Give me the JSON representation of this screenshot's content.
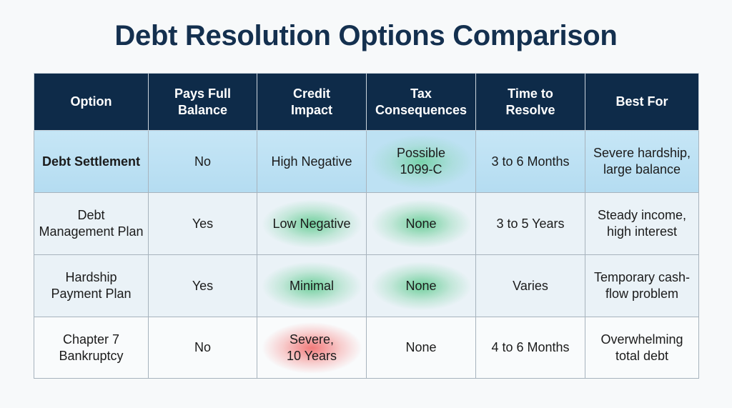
{
  "header": {
    "title": "Debt Resolution Options Comparison"
  },
  "table": {
    "columns": [
      "Option",
      "Pays Full\nBalance",
      "Credit\nImpact",
      "Tax\nConsequences",
      "Time to\nResolve",
      "Best For"
    ],
    "rows": [
      [
        "Debt Settlement",
        "No",
        "High Negative",
        "Possible\n1099-C",
        "3 to 6 Months",
        "Severe hardship,\nlarge balance"
      ],
      [
        "Debt\nManagement Plan",
        "Yes",
        "Low Negative",
        "None",
        "3 to 5 Years",
        "Steady income,\nhigh interest"
      ],
      [
        "Hardship\nPayment Plan",
        "Yes",
        "Minimal",
        "None",
        "Varies",
        "Temporary cash-\nflow problem"
      ],
      [
        "Chapter 7\nBankruptcy",
        "No",
        "Severe,\n10 Years",
        "None",
        "4 to 6 Months",
        "Overwhelming\ntotal debt"
      ]
    ]
  }
}
